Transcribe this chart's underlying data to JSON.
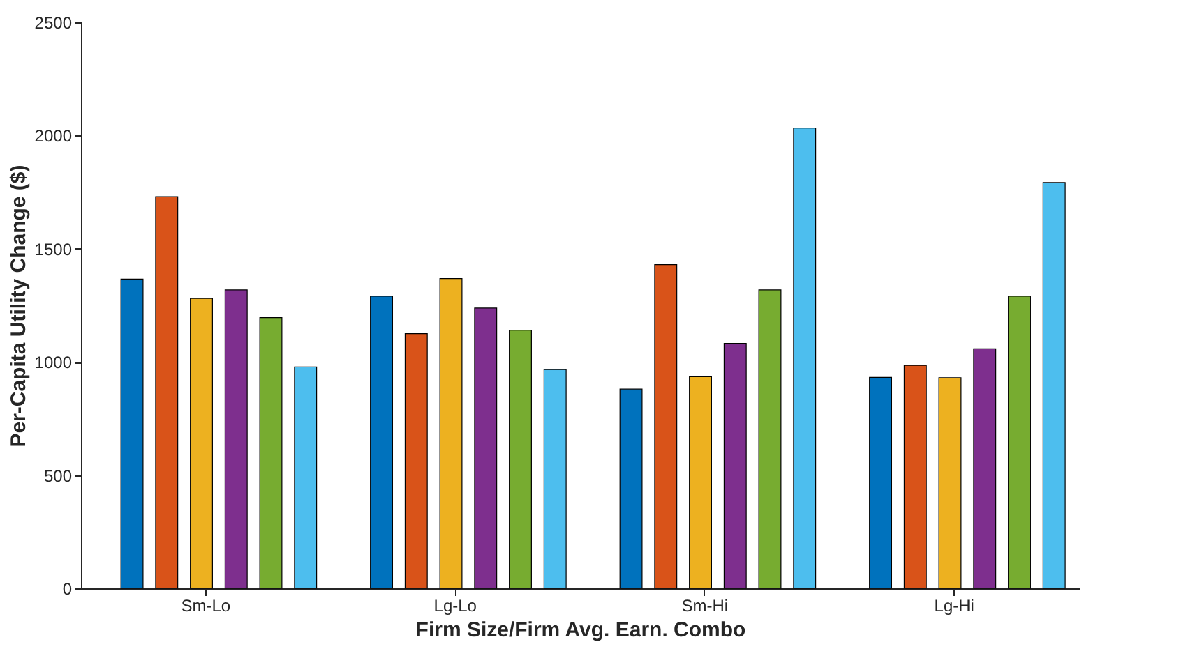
{
  "chart_data": {
    "type": "bar",
    "xlabel": "Firm Size/Firm Avg. Earn. Combo",
    "ylabel": "Per-Capita Utility Change ($)",
    "categories": [
      "Sm-Lo",
      "Lg-Lo",
      "Sm-Hi",
      "Lg-Hi"
    ],
    "series": [
      {
        "color": "#0072bd",
        "values": [
          1366,
          1290,
          880,
          932
        ]
      },
      {
        "color": "#d95319",
        "values": [
          1730,
          1125,
          1430,
          985
        ]
      },
      {
        "color": "#edb120",
        "values": [
          1280,
          1368,
          935,
          930
        ]
      },
      {
        "color": "#7e2f8e",
        "values": [
          1318,
          1238,
          1082,
          1058
        ]
      },
      {
        "color": "#77ac30",
        "values": [
          1196,
          1140,
          1318,
          1290
        ]
      },
      {
        "color": "#4dbeee",
        "values": [
          978,
          966,
          2033,
          1792
        ]
      }
    ],
    "ylim": [
      0,
      2500
    ],
    "yticks": [
      0,
      500,
      1000,
      1500,
      2000,
      2500
    ],
    "grid": false,
    "legend": false
  }
}
